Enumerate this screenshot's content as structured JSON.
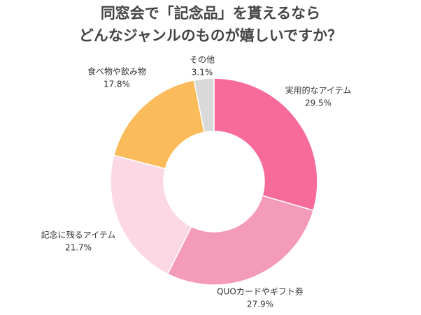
{
  "chart_data": {
    "type": "donut",
    "title": [
      "同窓会で「記念品」を貰えるなら",
      "どんなジャンルのものが嬉しいですか？"
    ],
    "categories": [
      "実用的なアイテム",
      "QUOカードやギフト券",
      "記念に残るアイテム",
      "食べ物や飲み物",
      "その他"
    ],
    "values": [
      29.5,
      27.9,
      21.7,
      17.8,
      3.1
    ],
    "value_labels": [
      "29.5%",
      "27.9%",
      "21.7%",
      "17.8%",
      "3.1%"
    ],
    "colors": [
      "#f76b9a",
      "#f59bba",
      "#fcd7e4",
      "#fbbb5b",
      "#d9d9d9"
    ]
  }
}
